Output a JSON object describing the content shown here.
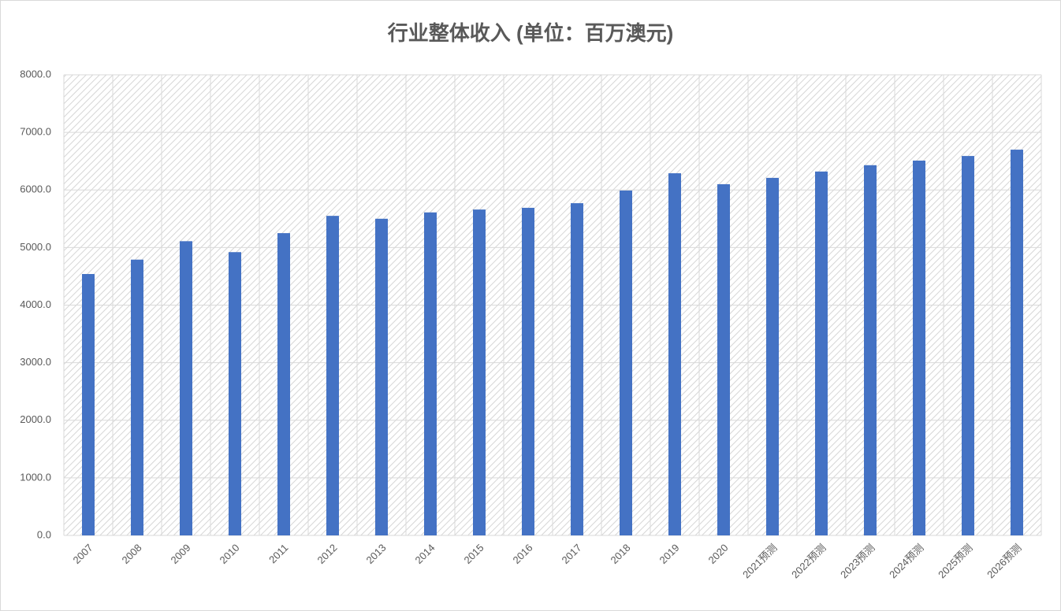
{
  "chart_data": {
    "type": "bar",
    "title": "行业整体收入 (单位：百万澳元)",
    "categories": [
      "2007",
      "2008",
      "2009",
      "2010",
      "2011",
      "2012",
      "2013",
      "2014",
      "2015",
      "2016",
      "2017",
      "2018",
      "2019",
      "2020",
      "2021预测",
      "2022预测",
      "2023预测",
      "2024预测",
      "2025预测",
      "2026预测"
    ],
    "values": [
      4540,
      4790,
      5110,
      4920,
      5250,
      5550,
      5500,
      5610,
      5660,
      5690,
      5770,
      5990,
      6290,
      6100,
      6210,
      6320,
      6430,
      6510,
      6590,
      6700
    ],
    "color": "#4472c4",
    "ylim": [
      0,
      8000
    ],
    "yticks": [
      {
        "value": 0,
        "label": "0.0"
      },
      {
        "value": 1000,
        "label": "1000.0"
      },
      {
        "value": 2000,
        "label": "2000.0"
      },
      {
        "value": 3000,
        "label": "3000.0"
      },
      {
        "value": 4000,
        "label": "4000.0"
      },
      {
        "value": 5000,
        "label": "5000.0"
      },
      {
        "value": 6000,
        "label": "6000.0"
      },
      {
        "value": 7000,
        "label": "7000.0"
      },
      {
        "value": 8000,
        "label": "8000.0"
      }
    ],
    "grid": true
  }
}
